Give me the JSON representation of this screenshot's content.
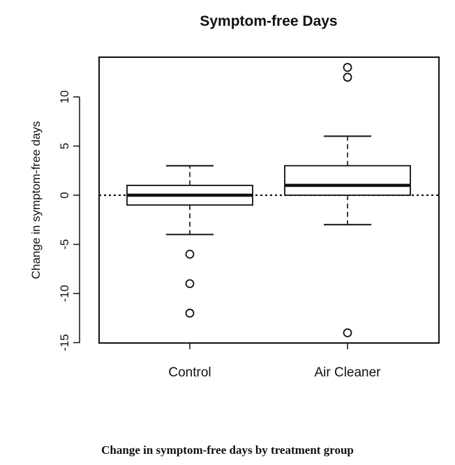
{
  "chart_data": {
    "type": "box",
    "title": "Symptom-free Days",
    "xlabel": "",
    "ylabel": "Change in symptom-free days",
    "ylim": [
      -15,
      14
    ],
    "yticks": [
      -15,
      -10,
      -5,
      0,
      5,
      10
    ],
    "ytick_labels": [
      "-15",
      "-10",
      "-5",
      "0",
      "5",
      "10"
    ],
    "categories": [
      "Control",
      "Air Cleaner"
    ],
    "boxes": [
      {
        "name": "Control",
        "whisker_low": -4,
        "q1": -1,
        "median": 0,
        "q3": 1,
        "whisker_high": 3,
        "outliers": [
          -6,
          -9,
          -12
        ]
      },
      {
        "name": "Air Cleaner",
        "whisker_low": -3,
        "q1": 0,
        "median": 1,
        "q3": 3,
        "whisker_high": 6,
        "outliers": [
          13,
          12,
          -14
        ]
      }
    ],
    "reference_line": {
      "y": 0,
      "style": "dotted"
    },
    "grid": false,
    "legend": false
  },
  "caption": "Change in symptom-free days by treatment group"
}
